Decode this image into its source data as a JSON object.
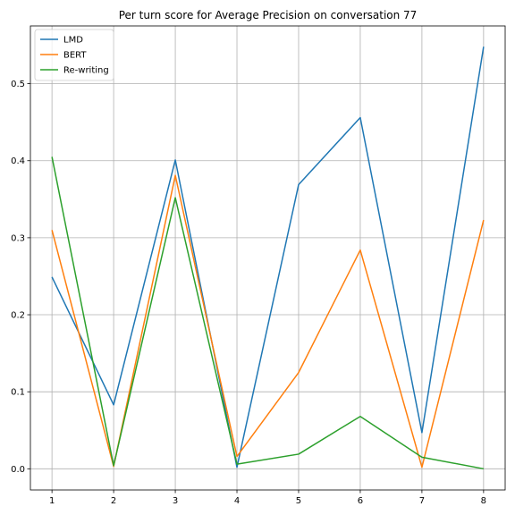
{
  "chart_data": {
    "type": "line",
    "title": "Per turn score for Average Precision on conversation 77",
    "xlabel": "",
    "ylabel": "",
    "x": [
      1,
      2,
      3,
      4,
      5,
      6,
      7,
      8
    ],
    "xticks": [
      "1",
      "2",
      "3",
      "4",
      "5",
      "6",
      "7",
      "8"
    ],
    "xlim": [
      0.65,
      8.35
    ],
    "yticks": [
      "0.0",
      "0.1",
      "0.2",
      "0.3",
      "0.4",
      "0.5"
    ],
    "ylim": [
      -0.0275,
      0.575
    ],
    "grid": true,
    "legend_position": "upper left",
    "series": [
      {
        "name": "LMD",
        "color": "#1f77b4",
        "values": [
          0.249,
          0.083,
          0.401,
          0.002,
          0.369,
          0.456,
          0.047,
          0.548
        ]
      },
      {
        "name": "BERT",
        "color": "#ff7f0e",
        "values": [
          0.31,
          0.003,
          0.381,
          0.016,
          0.125,
          0.284,
          0.002,
          0.323
        ]
      },
      {
        "name": "Re-writing",
        "color": "#2ca02c",
        "values": [
          0.405,
          0.004,
          0.352,
          0.006,
          0.019,
          0.068,
          0.015,
          0.0
        ]
      }
    ]
  }
}
